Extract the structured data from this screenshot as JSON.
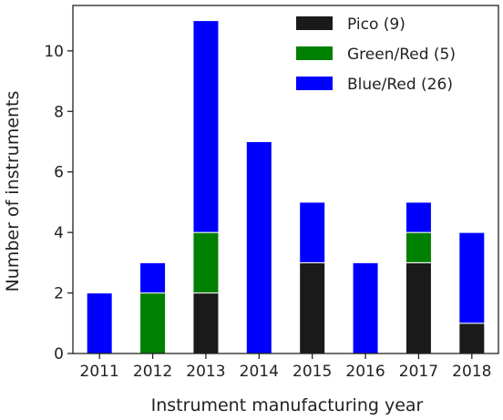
{
  "chart_data": {
    "type": "bar",
    "stacked": true,
    "title": "",
    "xlabel": "Instrument manufacturing year",
    "ylabel": "Number of instruments",
    "categories": [
      "2011",
      "2012",
      "2013",
      "2014",
      "2015",
      "2016",
      "2017",
      "2018"
    ],
    "series": [
      {
        "name": "Pico (9)",
        "color": "#1a1a1a",
        "values": [
          0,
          0,
          2,
          0,
          3,
          0,
          3,
          1
        ]
      },
      {
        "name": "Green/Red (5)",
        "color": "#008000",
        "values": [
          0,
          2,
          2,
          0,
          0,
          0,
          1,
          0
        ]
      },
      {
        "name": "Blue/Red (26)",
        "color": "#0000ff",
        "values": [
          2,
          1,
          7,
          7,
          2,
          3,
          1,
          3
        ]
      }
    ],
    "ylim": [
      0,
      11.5
    ],
    "yticks": [
      "0",
      "2",
      "4",
      "6",
      "8",
      "10"
    ],
    "grid": false,
    "legend_position": "top-right"
  }
}
